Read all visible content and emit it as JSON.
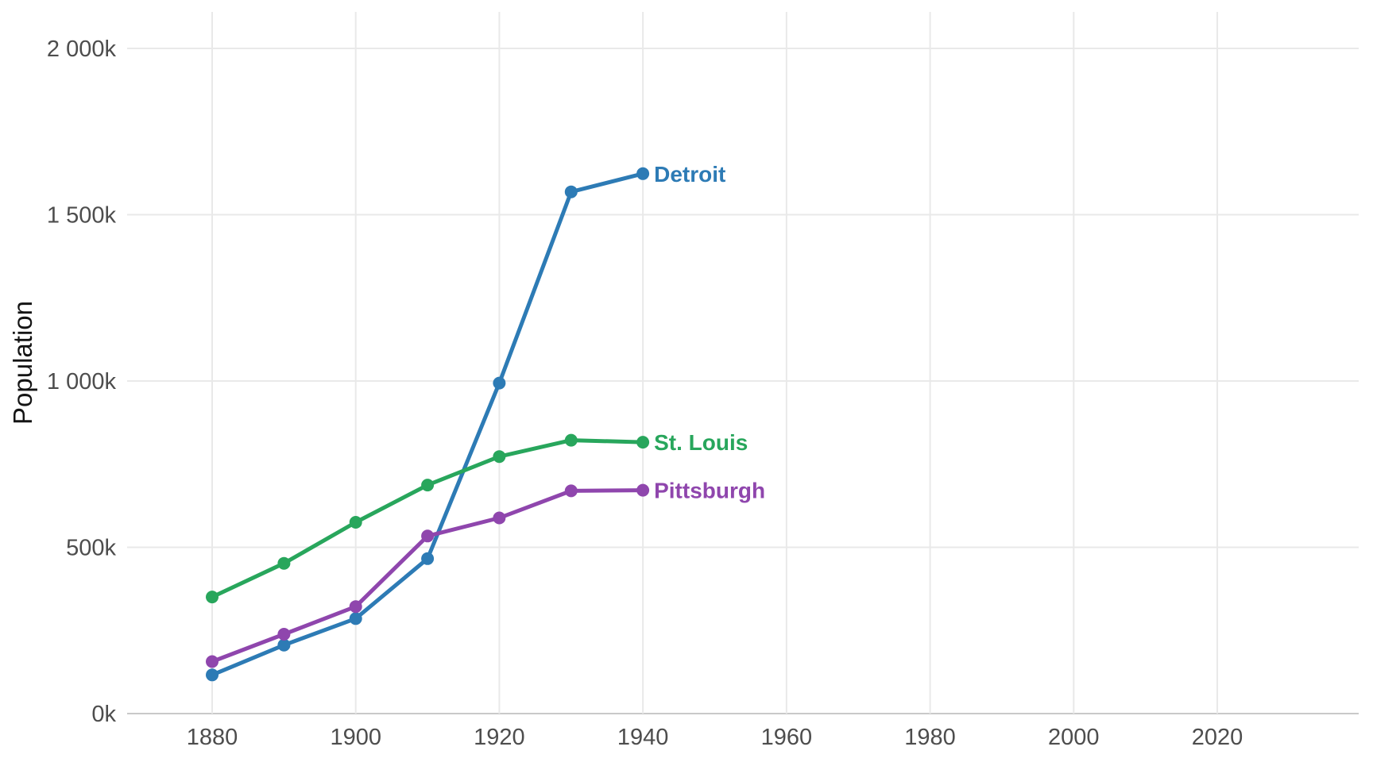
{
  "chart_data": {
    "type": "line",
    "title": "",
    "xlabel": "",
    "ylabel": "Population",
    "unit_suffix": "k",
    "x": [
      1880,
      1890,
      1900,
      1910,
      1920,
      1930,
      1940
    ],
    "series": [
      {
        "name": "Detroit",
        "color": "#2d7bb5",
        "values_k": [
          116.3,
          205.9,
          285.7,
          465.8,
          993.7,
          1568.7,
          1623.5
        ]
      },
      {
        "name": "St. Louis",
        "color": "#28a65c",
        "values_k": [
          350.5,
          451.8,
          575.2,
          687.0,
          772.9,
          822.0,
          816.0
        ]
      },
      {
        "name": "Pittsburgh",
        "color": "#8f46ad",
        "values_k": [
          156.4,
          238.6,
          321.6,
          533.9,
          588.3,
          669.8,
          671.7
        ]
      }
    ],
    "draw_order": [
      "Detroit",
      "Pittsburgh",
      "St. Louis"
    ],
    "x_ticks": [
      {
        "value": 1880,
        "label": "1880"
      },
      {
        "value": 1900,
        "label": "1900"
      },
      {
        "value": 1920,
        "label": "1920"
      },
      {
        "value": 1940,
        "label": "1940"
      },
      {
        "value": 1960,
        "label": "1960"
      },
      {
        "value": 1980,
        "label": "1980"
      },
      {
        "value": 2000,
        "label": "2000"
      },
      {
        "value": 2020,
        "label": "2020"
      }
    ],
    "y_ticks": [
      {
        "value_k": 0,
        "label": "0k"
      },
      {
        "value_k": 500,
        "label": "500k"
      },
      {
        "value_k": 1000,
        "label": "1 000k"
      },
      {
        "value_k": 1500,
        "label": "1 500k"
      },
      {
        "value_k": 2000,
        "label": "2 000k"
      }
    ],
    "xlim": [
      1868.2,
      2039.7
    ],
    "ylim_k": [
      0,
      2110
    ],
    "grid": true,
    "legend": "line-end-labels",
    "colors": {
      "gridline": "#e9e9e9",
      "baseline": "#c9c9c9",
      "tick_text": "#4d4d4d",
      "axis_title_text": "#141414"
    }
  }
}
